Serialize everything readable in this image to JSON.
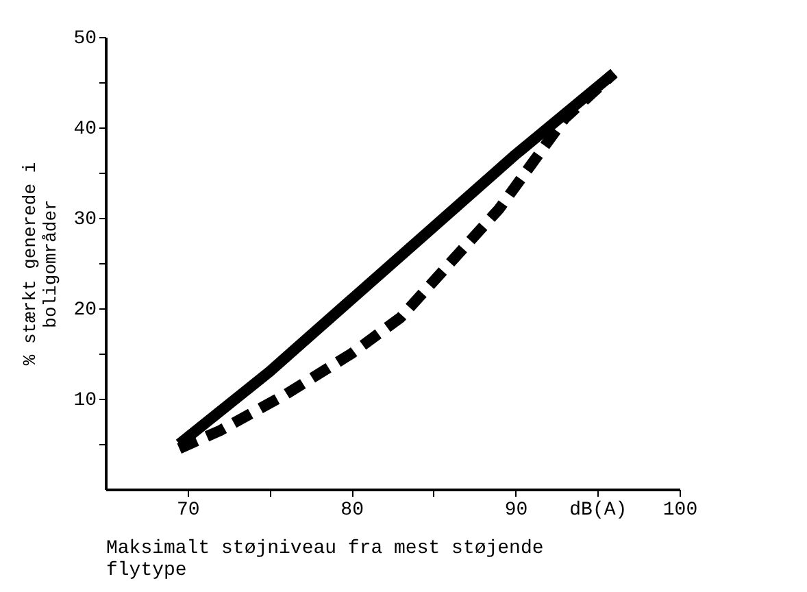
{
  "chart_data": {
    "type": "line",
    "xlabel": "Maksimalt støjniveau fra mest støjende\nflytype",
    "ylabel": "% stærkt generede i\nboligområder",
    "xlim": [
      65,
      100
    ],
    "ylim": [
      0,
      50
    ],
    "xticks": [
      70,
      {
        "value": 75,
        "label": null
      },
      80,
      {
        "value": 85,
        "label": null
      },
      90,
      {
        "value": 95,
        "label": "dB(A)"
      },
      100
    ],
    "yticks": [
      {
        "value": 5,
        "label": null
      },
      10,
      {
        "value": 15,
        "label": null
      },
      20,
      {
        "value": 25,
        "label": null
      },
      30,
      {
        "value": 35,
        "label": null
      },
      40,
      {
        "value": 45,
        "label": null
      },
      50
    ],
    "grid": false,
    "legend": false,
    "marker": "none",
    "series": [
      {
        "color": "#000000",
        "line_style": "solid",
        "x": [
          69.5,
          75,
          80,
          85,
          90,
          96
        ],
        "values": [
          5,
          13,
          21,
          29,
          37,
          46
        ]
      },
      {
        "color": "#000000",
        "line_style": "dashed",
        "x": [
          69.5,
          72,
          76,
          80,
          83,
          86,
          89,
          91,
          93,
          96
        ],
        "values": [
          4.5,
          6.5,
          10.5,
          15,
          19,
          25,
          31,
          36,
          41,
          46
        ]
      }
    ]
  }
}
